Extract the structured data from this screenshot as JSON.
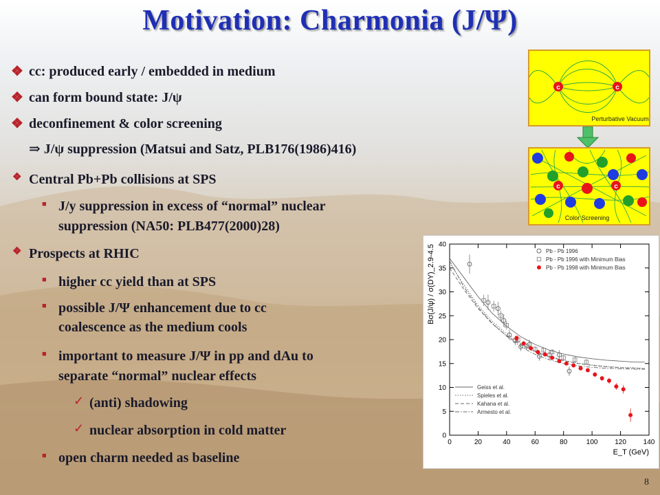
{
  "slide": {
    "title": "Motivation: Charmonia (J/Ψ)",
    "page_number": "8"
  },
  "bullets": [
    {
      "level": 1,
      "marker": "diamond",
      "text": "cc: produced early / embedded in medium"
    },
    {
      "level": 1,
      "marker": "diamond",
      "text": "can form bound state: J/ψ"
    },
    {
      "level": 1,
      "marker": "diamond",
      "text": "deconfinement & color screening"
    },
    {
      "level": 1,
      "marker": "none",
      "text": "⇒ J/ψ suppression (Matsui and Satz, PLB176(1986)416)"
    },
    {
      "level": 1,
      "marker": "diamond-small",
      "text": "Central Pb+Pb collisions at SPS"
    },
    {
      "level": 2,
      "marker": "square",
      "text": "J/y suppression in excess of “normal” nuclear"
    },
    {
      "level": 2,
      "marker": "none",
      "text": "suppression (NA50: PLB477(2000)28)"
    },
    {
      "level": 1,
      "marker": "diamond-small",
      "text": "Prospects at RHIC"
    },
    {
      "level": 2,
      "marker": "square",
      "text": "higher cc yield than at SPS"
    },
    {
      "level": 2,
      "marker": "square",
      "text": "possible J/Ψ enhancement due to cc"
    },
    {
      "level": 2,
      "marker": "none",
      "text": "coalescence as the medium cools"
    },
    {
      "level": 2,
      "marker": "square",
      "text": "important to measure J/Ψ in pp and dAu to"
    },
    {
      "level": 2,
      "marker": "none",
      "text": "separate “normal” nuclear effects"
    },
    {
      "level": 3,
      "marker": "check",
      "text": "(anti) shadowing"
    },
    {
      "level": 3,
      "marker": "check",
      "text": "nuclear absorption in cold matter"
    },
    {
      "level": 2,
      "marker": "square",
      "text": "open charm needed as baseline"
    }
  ],
  "diagram": {
    "top_label": "Perturbative Vacuum",
    "bottom_label": "Color Screening",
    "quark_label": "c",
    "antiquark_label": "c"
  },
  "colors": {
    "title": "#1f2fb5",
    "marker": "#b8232b",
    "diagram_bg": "#ffff00",
    "diagram_border": "#d89a2a",
    "field_lines": "#2fa84a",
    "arrow": "#4fc06a",
    "red_dot": "#e8141a",
    "open_circle": "#666666",
    "open_square": "#888888"
  },
  "chart_data": {
    "type": "scatter",
    "xlabel": "E_T (GeV)",
    "ylabel": "Bσ(J/ψ) / σ(DY)_2.9-4.5",
    "xlim": [
      0,
      140
    ],
    "ylim": [
      0,
      40
    ],
    "xticks": [
      0,
      20,
      40,
      60,
      80,
      100,
      120,
      140
    ],
    "yticks": [
      0,
      5,
      10,
      15,
      20,
      25,
      30,
      35,
      40
    ],
    "legend_position": "top-right",
    "series": [
      {
        "name": "Pb - Pb 1996",
        "marker": "open-circle",
        "x": [
          14,
          27,
          34,
          38,
          42,
          46,
          50,
          56,
          63,
          70,
          77,
          84
        ],
        "y": [
          35.8,
          27.8,
          26.5,
          24.0,
          21.0,
          19.8,
          18.5,
          19.0,
          16.5,
          16.8,
          16.8,
          13.4
        ],
        "err": [
          2.0,
          1.6,
          1.4,
          1.3,
          1.1,
          1.0,
          0.9,
          1.0,
          0.9,
          0.9,
          1.0,
          1.0
        ]
      },
      {
        "name": "Pb - Pb 1996 with Minimum Bias",
        "marker": "open-square",
        "x": [
          24,
          31,
          36,
          40,
          48,
          54,
          60,
          66,
          72,
          80,
          88,
          96
        ],
        "y": [
          28.2,
          27.0,
          25.0,
          23.0,
          20.0,
          18.6,
          18.0,
          17.8,
          17.4,
          16.2,
          15.8,
          15.3
        ],
        "err": [
          1.2,
          1.1,
          1.0,
          0.9,
          0.8,
          0.7,
          0.6,
          0.6,
          0.6,
          0.6,
          0.6,
          0.6
        ]
      },
      {
        "name": "Pb - Pb 1998 with Minimum Bias",
        "marker": "red-dot",
        "x": [
          47,
          52,
          57,
          62,
          67,
          72,
          77,
          82,
          87,
          92,
          97,
          102,
          107,
          112,
          117,
          122,
          127
        ],
        "y": [
          20.3,
          19.2,
          18.2,
          17.4,
          16.9,
          16.2,
          15.5,
          15.0,
          14.6,
          14.0,
          13.6,
          12.7,
          11.9,
          11.4,
          10.2,
          9.6,
          4.2
        ],
        "err": [
          0.6,
          0.5,
          0.5,
          0.5,
          0.4,
          0.4,
          0.4,
          0.4,
          0.4,
          0.4,
          0.4,
          0.5,
          0.5,
          0.6,
          0.7,
          0.9,
          1.4
        ]
      }
    ],
    "curves": [
      {
        "name": "Geiss et al.",
        "style": "solid",
        "x": [
          0,
          10,
          20,
          30,
          40,
          50,
          60,
          70,
          80,
          90,
          100,
          110,
          120,
          130,
          137
        ],
        "y": [
          37.0,
          33.0,
          29.0,
          25.5,
          22.8,
          20.6,
          19.0,
          17.8,
          17.0,
          16.4,
          16.0,
          15.7,
          15.5,
          15.3,
          15.3
        ]
      },
      {
        "name": "Spieles et al.",
        "style": "dotted",
        "x": [
          0,
          10,
          20,
          30,
          40,
          50,
          60,
          70,
          80,
          90,
          100,
          110,
          120,
          130,
          137
        ],
        "y": [
          36.0,
          31.5,
          27.2,
          23.8,
          21.2,
          19.2,
          17.6,
          16.5,
          15.7,
          15.1,
          14.7,
          14.4,
          14.2,
          14.1,
          14.0
        ]
      },
      {
        "name": "Kahana et al.",
        "style": "dashed",
        "x": [
          0,
          10,
          20,
          30,
          40,
          50,
          60,
          70,
          80,
          90,
          100,
          110,
          120,
          130,
          137
        ],
        "y": [
          35.0,
          30.5,
          26.5,
          23.3,
          20.8,
          18.9,
          17.5,
          16.4,
          15.6,
          15.0,
          14.6,
          14.3,
          14.1,
          14.0,
          13.9
        ]
      },
      {
        "name": "Armesto et al.",
        "style": "dashdot",
        "x": [
          0,
          10,
          20,
          30,
          40,
          50,
          60,
          70,
          80,
          90,
          100,
          110,
          120,
          130,
          137
        ],
        "y": [
          36.5,
          31.0,
          26.8,
          23.4,
          20.7,
          18.5,
          16.9,
          15.8,
          15.0,
          14.5,
          14.2,
          14.0,
          13.9,
          13.8,
          13.8
        ]
      }
    ]
  }
}
